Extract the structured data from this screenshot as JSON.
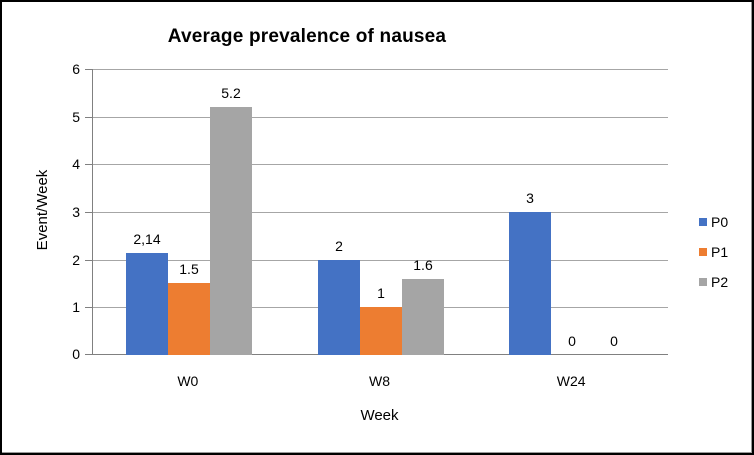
{
  "window": {
    "background": "#ffffff",
    "frame_border_color": "#000000"
  },
  "chart_data": {
    "type": "bar",
    "title": "Average prevalence of nausea",
    "xlabel": "Week",
    "ylabel": "Event/Week",
    "categories": [
      "W0",
      "W8",
      "W24"
    ],
    "series": [
      {
        "name": "P0",
        "color": "#4472C4",
        "values": [
          2.14,
          2,
          3
        ],
        "value_labels": [
          "2,14",
          "2",
          "3"
        ]
      },
      {
        "name": "P1",
        "color": "#ED7D31",
        "values": [
          1.5,
          1,
          0
        ],
        "value_labels": [
          "1.5",
          "1",
          "0"
        ]
      },
      {
        "name": "P2",
        "color": "#A5A5A5",
        "values": [
          5.2,
          1.6,
          0
        ],
        "value_labels": [
          "5.2",
          "1.6",
          "0"
        ]
      }
    ],
    "ylim": [
      0,
      6
    ],
    "yticks": [
      0,
      1,
      2,
      3,
      4,
      5,
      6
    ],
    "grid": true,
    "legend_position": "right",
    "gridline_color": "#A6A6A6",
    "axis_color": "#808080",
    "text_color": "#000000"
  }
}
